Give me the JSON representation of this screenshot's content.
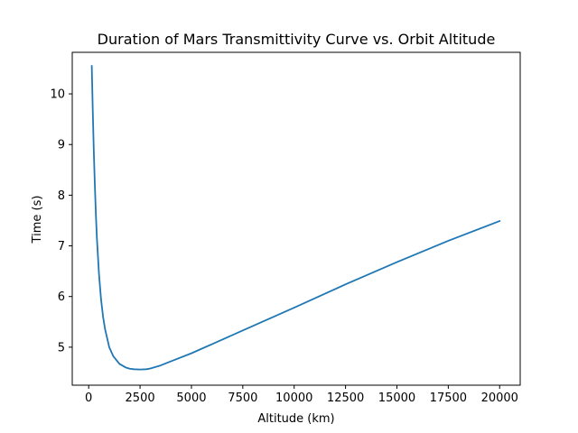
{
  "chart_data": {
    "type": "line",
    "title": "Duration of Mars Transmittivity Curve vs. Orbit Altitude",
    "xlabel": "Altitude (km)",
    "ylabel": "Time (s)",
    "xlim": [
      -800,
      21000
    ],
    "ylim": [
      4.25,
      10.82
    ],
    "xticks": [
      0,
      2500,
      5000,
      7500,
      10000,
      12500,
      15000,
      17500,
      20000
    ],
    "xtick_labels": [
      "0",
      "2500",
      "5000",
      "7500",
      "10000",
      "12500",
      "15000",
      "17500",
      "20000"
    ],
    "yticks": [
      5,
      6,
      7,
      8,
      9,
      10
    ],
    "ytick_labels": [
      "5",
      "6",
      "7",
      "8",
      "9",
      "10"
    ],
    "grid": false,
    "series": [
      {
        "color": "#1f77b4",
        "x": [
          150,
          200,
          250,
          300,
          350,
          400,
          500,
          600,
          700,
          800,
          1000,
          1200,
          1500,
          1800,
          2000,
          2200,
          2500,
          2800,
          3000,
          3500,
          4000,
          5000,
          6000,
          7500,
          10000,
          12500,
          15000,
          17500,
          20000
        ],
        "y": [
          10.55,
          9.65,
          8.85,
          8.2,
          7.62,
          7.15,
          6.45,
          5.95,
          5.6,
          5.35,
          5.0,
          4.82,
          4.67,
          4.6,
          4.575,
          4.565,
          4.56,
          4.565,
          4.58,
          4.64,
          4.72,
          4.88,
          5.06,
          5.33,
          5.78,
          6.24,
          6.68,
          7.1,
          7.49
        ]
      }
    ]
  }
}
